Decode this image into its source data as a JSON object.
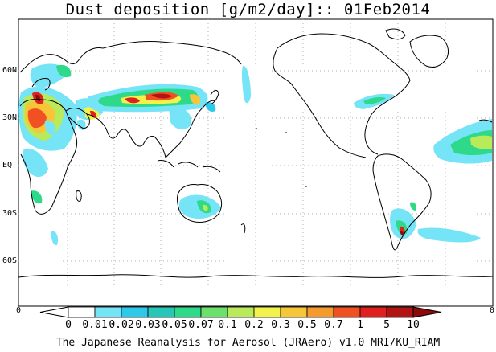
{
  "title": "Dust deposition [g/m2/day]:: 01Feb2014",
  "map": {
    "type": "global equirectangular",
    "lat_labels": [
      "60N",
      "30N",
      "EQ",
      "30S",
      "60S"
    ],
    "axis_zero_left": "0",
    "axis_zero_right": "0"
  },
  "colorbar": {
    "labels": [
      "0",
      "0.01",
      "0.02",
      "0.03",
      "0.05",
      "0.07",
      "0.1",
      "0.2",
      "0.3",
      "0.5",
      "0.7",
      "1",
      "5",
      "10"
    ],
    "colors": [
      "#ffffff",
      "#76e4f7",
      "#2ec9e8",
      "#25c8b8",
      "#2fd98a",
      "#6be06a",
      "#b8ea5a",
      "#f2f24a",
      "#f6c638",
      "#f59a2c",
      "#f05022",
      "#e02020",
      "#b21414",
      "#8b0b0b"
    ]
  },
  "footer": "The Japanese Reanalysis for Aerosol (JRAero) v1.0 MRI/KU_RIAM"
}
